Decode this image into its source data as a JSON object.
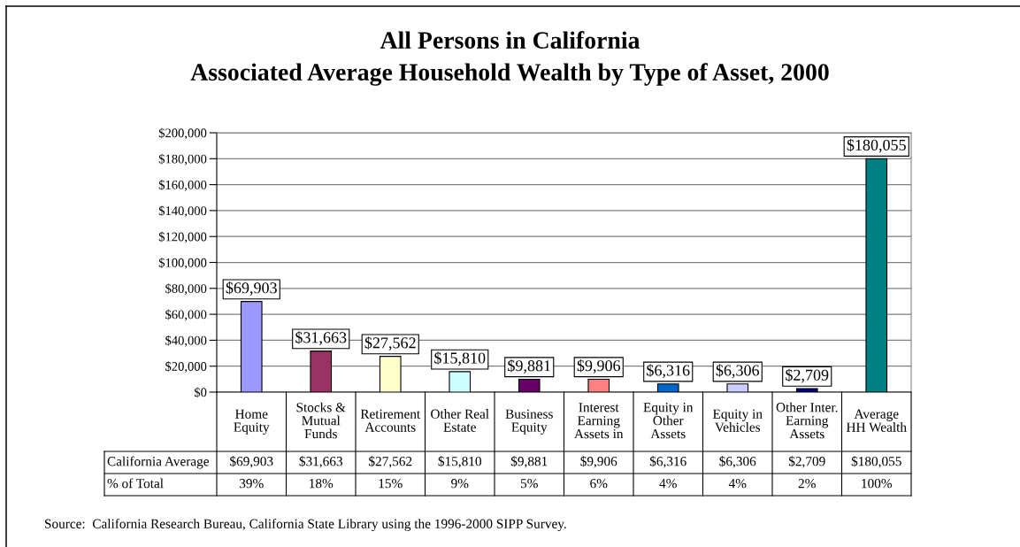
{
  "chart_data": {
    "type": "bar",
    "title": "All Persons in California",
    "subtitle": "Associated Average Household Wealth by Type of Asset, 2000",
    "categories": [
      "Home Equity",
      "Stocks & Mutual Funds",
      "Retirement Accounts",
      "Other Real Estate",
      "Business Equity",
      "Interest Earning Assets in",
      "Equity in Other Assets",
      "Equity in Vehicles",
      "Other Inter. Earning Assets",
      "Average HH Wealth"
    ],
    "series": [
      {
        "name": "California Average",
        "colors": [
          "#9999ff",
          "#993366",
          "#ffffcc",
          "#ccffff",
          "#660066",
          "#ff8080",
          "#0066cc",
          "#ccccff",
          "#000080",
          "#008080"
        ],
        "values": [
          69903,
          31663,
          27562,
          15810,
          9881,
          9906,
          6316,
          6306,
          2709,
          180055
        ],
        "value_labels": [
          "$69,903",
          "$31,663",
          "$27,562",
          "$15,810",
          "$9,881",
          "$9,906",
          "$6,316",
          "$6,306",
          "$2,709",
          "$180,055"
        ]
      }
    ],
    "ylim": [
      0,
      200000
    ],
    "yticks": [
      {
        "value": 0,
        "label": "$0"
      },
      {
        "value": 20000,
        "label": "$20,000"
      },
      {
        "value": 40000,
        "label": "$40,000"
      },
      {
        "value": 60000,
        "label": "$60,000"
      },
      {
        "value": 80000,
        "label": "$80,000"
      },
      {
        "value": 100000,
        "label": "$100,000"
      },
      {
        "value": 120000,
        "label": "$120,000"
      },
      {
        "value": 140000,
        "label": "$140,000"
      },
      {
        "value": 160000,
        "label": "$160,000"
      },
      {
        "value": 180000,
        "label": "$180,000"
      },
      {
        "value": 200000,
        "label": "$200,000"
      }
    ],
    "grid": "y",
    "annotations": [
      "% of Total",
      "39%",
      "18%",
      "15%",
      "9%",
      "5%",
      "6%",
      "4%",
      "4%",
      "2%",
      "100%",
      "Source:  California Research Bureau, California State Library using the 1996-2000 SIPP Survey."
    ]
  }
}
